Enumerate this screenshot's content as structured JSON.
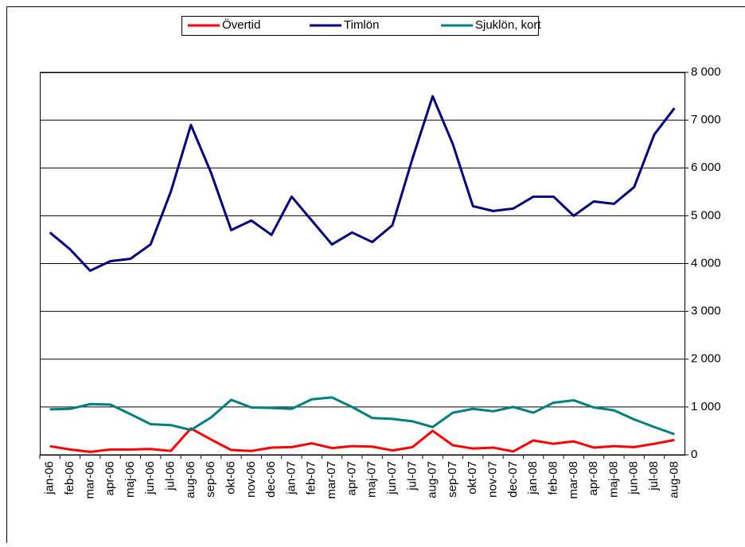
{
  "chart_data": {
    "type": "line",
    "categories": [
      "jan-06",
      "feb-06",
      "mar-06",
      "apr-06",
      "maj-06",
      "jun-06",
      "jul-06",
      "aug-06",
      "sep-06",
      "okt-06",
      "nov-06",
      "dec-06",
      "jan-07",
      "feb-07",
      "mar-07",
      "apr-07",
      "maj-07",
      "jun-07",
      "jul-07",
      "aug-07",
      "sep-07",
      "okt-07",
      "nov-07",
      "dec-07",
      "jan-08",
      "feb-08",
      "mar-08",
      "apr-08",
      "maj-08",
      "jun-08",
      "jul-08",
      "aug-08"
    ],
    "series": [
      {
        "name": "Övertid",
        "color": "#ff0000",
        "values": [
          180,
          110,
          60,
          110,
          110,
          120,
          80,
          550,
          320,
          100,
          80,
          150,
          160,
          240,
          140,
          180,
          170,
          90,
          160,
          500,
          200,
          130,
          150,
          70,
          300,
          230,
          280,
          150,
          180,
          160,
          230,
          310
        ]
      },
      {
        "name": "Timlön",
        "color": "#000080",
        "values": [
          4650,
          4300,
          3850,
          4050,
          4100,
          4400,
          5500,
          6900,
          5900,
          4700,
          4900,
          4600,
          5400,
          4900,
          4400,
          4650,
          4450,
          4800,
          6200,
          7500,
          6500,
          5200,
          5100,
          5150,
          5400,
          5400,
          5000,
          5300,
          5250,
          5600,
          6700,
          7250
        ]
      },
      {
        "name": "Sjuklön, kort",
        "color": "#008080",
        "values": [
          950,
          960,
          1060,
          1050,
          850,
          640,
          620,
          520,
          780,
          1150,
          990,
          980,
          960,
          1160,
          1200,
          1000,
          770,
          750,
          700,
          580,
          880,
          960,
          910,
          1000,
          880,
          1090,
          1140,
          990,
          930,
          740,
          580,
          430
        ]
      }
    ],
    "ylim": [
      0,
      8000
    ],
    "yticks": [
      {
        "value": 0,
        "label": "0"
      },
      {
        "value": 1000,
        "label": "1 000"
      },
      {
        "value": 2000,
        "label": "2 000"
      },
      {
        "value": 3000,
        "label": "3 000"
      },
      {
        "value": 4000,
        "label": "4 000"
      },
      {
        "value": 5000,
        "label": "5 000"
      },
      {
        "value": 6000,
        "label": "6 000"
      },
      {
        "value": 7000,
        "label": "7 000"
      },
      {
        "value": 8000,
        "label": "8 000"
      }
    ],
    "grid": true,
    "legend": "top"
  }
}
